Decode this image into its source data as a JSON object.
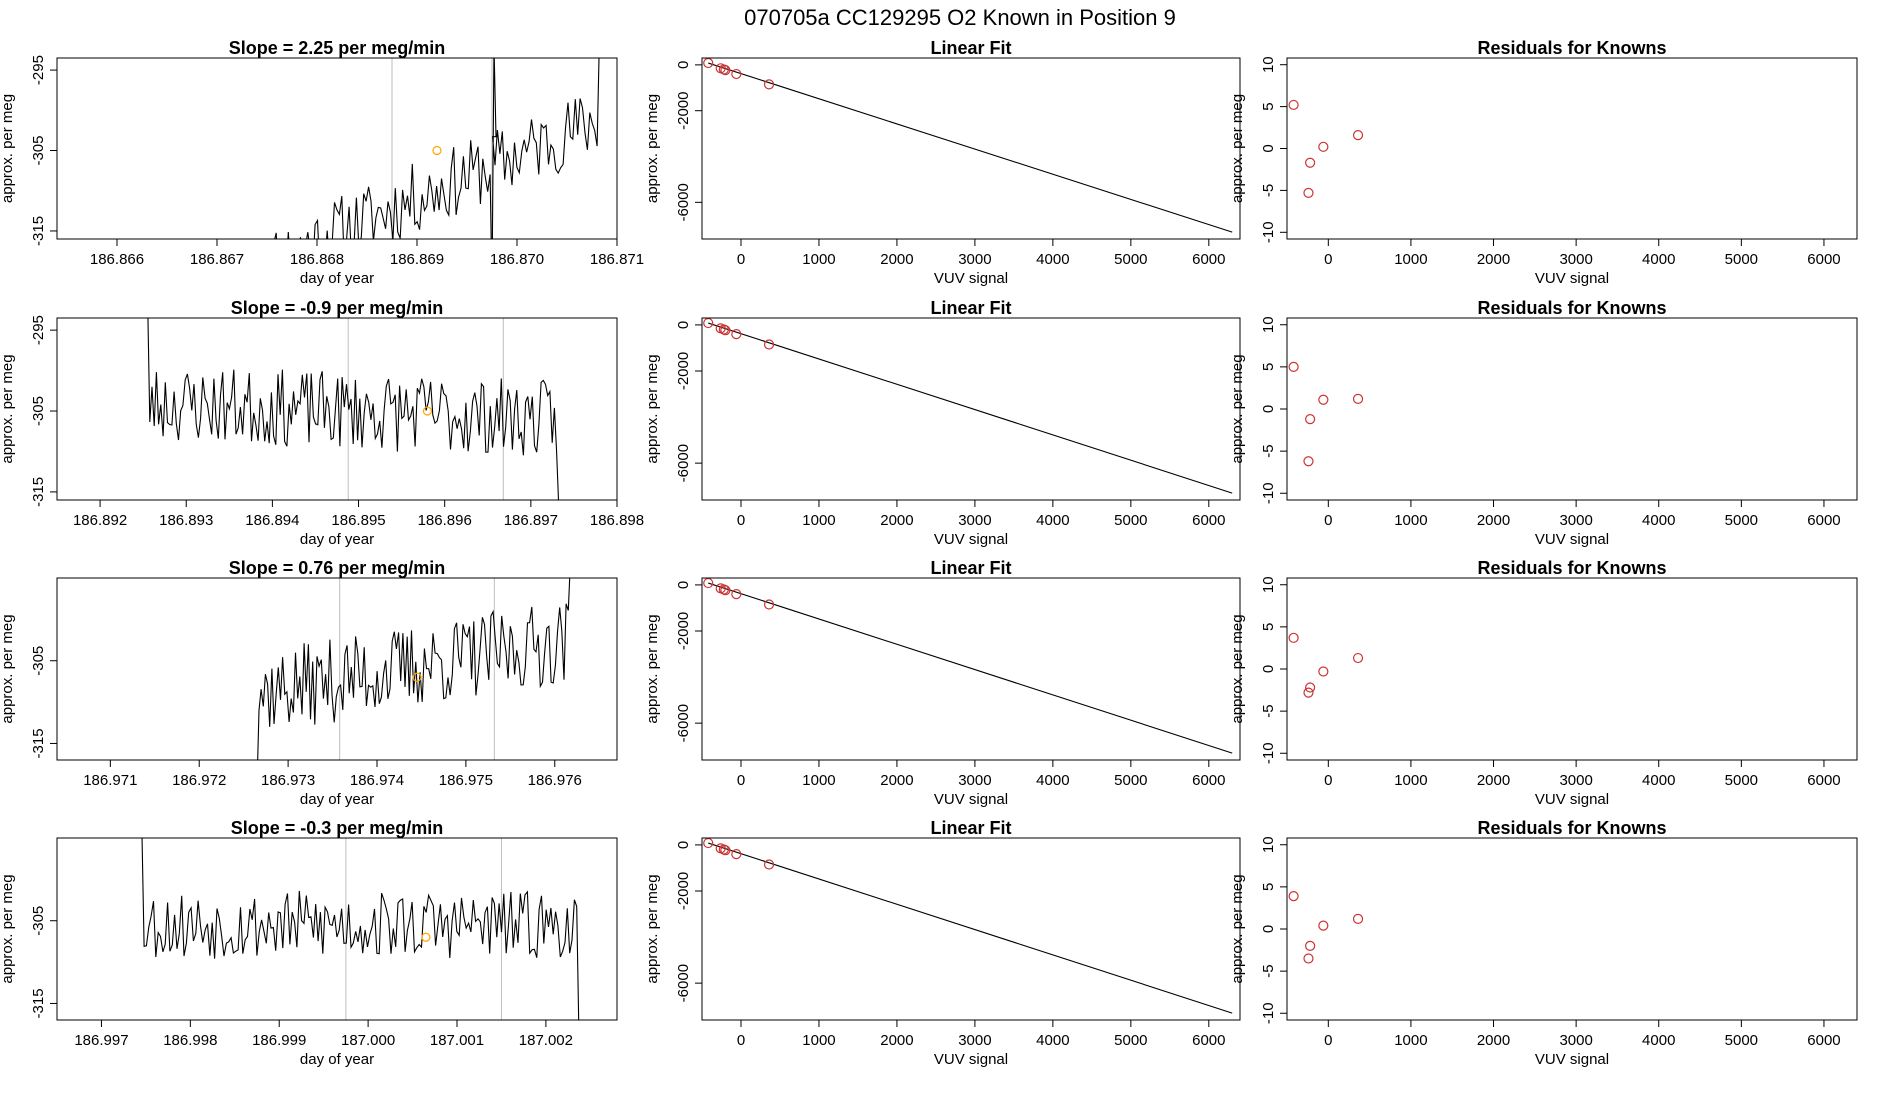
{
  "figure": {
    "title": "070705a      CC129295   O2 Known in Position  9",
    "colors": {
      "trace": "#000000",
      "marker": "#ffa500",
      "point": "#cd3333",
      "vline": "#bebebe",
      "axis": "#000000"
    }
  },
  "rows": [
    {
      "timeseries": {
        "title": "Slope =  2.25  per meg/min",
        "xlabel": "day of year",
        "ylabel": "approx. per meg",
        "xlim": [
          186.8654,
          186.871
        ],
        "ylim": [
          -316.0,
          -293.5
        ],
        "xticks": [
          186.866,
          186.867,
          186.868,
          186.869,
          186.87,
          186.871
        ],
        "xtick_labels": [
          "186.866",
          "186.867",
          "186.868",
          "186.869",
          "186.870",
          "186.871"
        ],
        "yticks": [
          -315,
          -305,
          -295
        ],
        "ytick_labels": [
          "-315",
          "-305",
          "-295"
        ],
        "vlines": [
          186.86875,
          186.86975
        ],
        "marker": {
          "x": 186.8692,
          "y": -305.0
        },
        "x_start": 186.86747,
        "x_end": 186.87085,
        "n": 140,
        "y_start": -319.0,
        "y_end": -301.0,
        "amp": 2.8,
        "seed": 11,
        "breaks": [
          [
            186.86975,
            -322,
            -292
          ]
        ],
        "tail_spike": -290,
        "chart_type": "line"
      },
      "fit": {
        "title": "Linear Fit",
        "xlabel": "VUV signal",
        "ylabel": "approx. per meg",
        "xlim": [
          -500,
          6400
        ],
        "ylim": [
          -7600,
          300
        ],
        "xticks": [
          0,
          1000,
          2000,
          3000,
          4000,
          5000,
          6000
        ],
        "xtick_labels": [
          "0",
          "1000",
          "2000",
          "3000",
          "4000",
          "5000",
          "6000"
        ],
        "yticks": [
          0,
          -2000,
          -6000
        ],
        "ytick_labels": [
          "0",
          "-2000",
          "-6000"
        ],
        "line": [
          [
            -420,
            80
          ],
          [
            6300,
            -7300
          ]
        ],
        "points": [
          [
            -420,
            80
          ],
          [
            -260,
            -150
          ],
          [
            -220,
            -200
          ],
          [
            -200,
            -230
          ],
          [
            -60,
            -400
          ],
          [
            360,
            -850
          ]
        ],
        "chart_type": "scatter"
      },
      "resid": {
        "title": "Residuals for Knowns",
        "xlabel": "VUV signal",
        "ylabel": "approx. per meg",
        "xlim": [
          -500,
          6400
        ],
        "ylim": [
          -10.8,
          10.8
        ],
        "xticks": [
          0,
          1000,
          2000,
          3000,
          4000,
          5000,
          6000
        ],
        "xtick_labels": [
          "0",
          "1000",
          "2000",
          "3000",
          "4000",
          "5000",
          "6000"
        ],
        "yticks": [
          -10,
          -5,
          0,
          5,
          10
        ],
        "ytick_labels": [
          "-10",
          "-5",
          "0",
          "5",
          "10"
        ],
        "points": [
          [
            -420,
            5.2
          ],
          [
            -240,
            -5.3
          ],
          [
            -220,
            -1.7
          ],
          [
            -60,
            0.2
          ],
          [
            360,
            1.6
          ]
        ],
        "chart_type": "scatter"
      }
    },
    {
      "timeseries": {
        "title": "Slope =  -0.9  per meg/min",
        "xlabel": "day of year",
        "ylabel": "approx. per meg",
        "xlim": [
          186.8915,
          186.898
        ],
        "ylim": [
          -316.0,
          -293.5
        ],
        "xticks": [
          186.892,
          186.893,
          186.894,
          186.895,
          186.896,
          186.897,
          186.898
        ],
        "xtick_labels": [
          "186.892",
          "186.893",
          "186.894",
          "186.895",
          "186.896",
          "186.897",
          "186.898"
        ],
        "yticks": [
          -315,
          -305,
          -295
        ],
        "ytick_labels": [
          "-315",
          "-305",
          "-295"
        ],
        "vlines": [
          186.89488,
          186.89668
        ],
        "marker": {
          "x": 186.8958,
          "y": -305.0
        },
        "x_start": 186.8925,
        "x_end": 186.89735,
        "n": 190,
        "y_start": -304.0,
        "y_end": -306.0,
        "amp": 3.0,
        "seed": 23,
        "breaks": [],
        "head_spike": -292,
        "tail_spike": -317,
        "chart_type": "line"
      },
      "fit": {
        "title": "Linear Fit",
        "xlabel": "VUV signal",
        "ylabel": "approx. per meg",
        "xlim": [
          -500,
          6400
        ],
        "ylim": [
          -7600,
          300
        ],
        "xticks": [
          0,
          1000,
          2000,
          3000,
          4000,
          5000,
          6000
        ],
        "xtick_labels": [
          "0",
          "1000",
          "2000",
          "3000",
          "4000",
          "5000",
          "6000"
        ],
        "yticks": [
          0,
          -2000,
          -6000
        ],
        "ytick_labels": [
          "0",
          "-2000",
          "-6000"
        ],
        "line": [
          [
            -420,
            80
          ],
          [
            6300,
            -7300
          ]
        ],
        "points": [
          [
            -420,
            80
          ],
          [
            -260,
            -150
          ],
          [
            -220,
            -200
          ],
          [
            -200,
            -230
          ],
          [
            -60,
            -400
          ],
          [
            360,
            -850
          ]
        ],
        "chart_type": "scatter"
      },
      "resid": {
        "title": "Residuals for Knowns",
        "xlabel": "VUV signal",
        "ylabel": "approx. per meg",
        "xlim": [
          -500,
          6400
        ],
        "ylim": [
          -10.8,
          10.8
        ],
        "xticks": [
          0,
          1000,
          2000,
          3000,
          4000,
          5000,
          6000
        ],
        "xtick_labels": [
          "0",
          "1000",
          "2000",
          "3000",
          "4000",
          "5000",
          "6000"
        ],
        "yticks": [
          -10,
          -5,
          0,
          5,
          10
        ],
        "ytick_labels": [
          "-10",
          "-5",
          "0",
          "5",
          "10"
        ],
        "points": [
          [
            -420,
            5.0
          ],
          [
            -240,
            -6.2
          ],
          [
            -220,
            -1.2
          ],
          [
            -60,
            1.1
          ],
          [
            360,
            1.2
          ]
        ],
        "chart_type": "scatter"
      }
    },
    {
      "timeseries": {
        "title": "Slope =  0.76  per meg/min",
        "xlabel": "day of year",
        "ylabel": "approx. per meg",
        "xlim": [
          186.9704,
          186.9767
        ],
        "ylim": [
          -317.0,
          -295.0
        ],
        "xticks": [
          186.971,
          186.972,
          186.973,
          186.974,
          186.975,
          186.976
        ],
        "xtick_labels": [
          "186.971",
          "186.972",
          "186.973",
          "186.974",
          "186.975",
          "186.976"
        ],
        "yticks": [
          -315,
          -305
        ],
        "ytick_labels": [
          "-315",
          "-305"
        ],
        "vlines": [
          186.97358,
          186.97532
        ],
        "marker": {
          "x": 186.97445,
          "y": -307.0
        },
        "x_start": 186.9726,
        "x_end": 186.9762,
        "n": 150,
        "y_start": -309.0,
        "y_end": -302.5,
        "amp": 3.2,
        "seed": 37,
        "breaks": [],
        "head_spike": -320,
        "tail_spike": -293,
        "chart_type": "line"
      },
      "fit": {
        "title": "Linear Fit",
        "xlabel": "VUV signal",
        "ylabel": "approx. per meg",
        "xlim": [
          -500,
          6400
        ],
        "ylim": [
          -7600,
          300
        ],
        "xticks": [
          0,
          1000,
          2000,
          3000,
          4000,
          5000,
          6000
        ],
        "xtick_labels": [
          "0",
          "1000",
          "2000",
          "3000",
          "4000",
          "5000",
          "6000"
        ],
        "yticks": [
          0,
          -2000,
          -6000
        ],
        "ytick_labels": [
          "0",
          "-2000",
          "-6000"
        ],
        "line": [
          [
            -420,
            80
          ],
          [
            6300,
            -7300
          ]
        ],
        "points": [
          [
            -420,
            80
          ],
          [
            -260,
            -150
          ],
          [
            -220,
            -200
          ],
          [
            -200,
            -230
          ],
          [
            -60,
            -400
          ],
          [
            360,
            -850
          ]
        ],
        "chart_type": "scatter"
      },
      "resid": {
        "title": "Residuals for Knowns",
        "xlabel": "VUV signal",
        "ylabel": "approx. per meg",
        "xlim": [
          -500,
          6400
        ],
        "ylim": [
          -10.8,
          10.8
        ],
        "xticks": [
          0,
          1000,
          2000,
          3000,
          4000,
          5000,
          6000
        ],
        "xtick_labels": [
          "0",
          "1000",
          "2000",
          "3000",
          "4000",
          "5000",
          "6000"
        ],
        "yticks": [
          -10,
          -5,
          0,
          5,
          10
        ],
        "ytick_labels": [
          "-10",
          "-5",
          "0",
          "5",
          "10"
        ],
        "points": [
          [
            -420,
            3.7
          ],
          [
            -240,
            -2.8
          ],
          [
            -220,
            -2.2
          ],
          [
            -60,
            -0.3
          ],
          [
            360,
            1.3
          ]
        ],
        "chart_type": "scatter"
      }
    },
    {
      "timeseries": {
        "title": "Slope =  -0.3  per meg/min",
        "xlabel": "day of year",
        "ylabel": "approx. per meg",
        "xlim": [
          186.9965,
          187.0028
        ],
        "ylim": [
          -317.0,
          -295.0
        ],
        "xticks": [
          186.997,
          186.998,
          186.999,
          187.0,
          187.001,
          187.002
        ],
        "xtick_labels": [
          "186.997",
          "186.998",
          "186.999",
          "187.000",
          "187.001",
          "187.002"
        ],
        "yticks": [
          -315,
          -305
        ],
        "ytick_labels": [
          "-315",
          "-305"
        ],
        "vlines": [
          186.99975,
          187.0015
        ],
        "marker": {
          "x": 187.00065,
          "y": -307.0
        },
        "x_start": 186.9974,
        "x_end": 187.0024,
        "n": 190,
        "y_start": -305.5,
        "y_end": -305.5,
        "amp": 2.6,
        "seed": 53,
        "breaks": [],
        "head_spike": -292,
        "tail_spike": -320,
        "chart_type": "line"
      },
      "fit": {
        "title": "Linear Fit",
        "xlabel": "VUV signal",
        "ylabel": "approx. per meg",
        "xlim": [
          -500,
          6400
        ],
        "ylim": [
          -7600,
          300
        ],
        "xticks": [
          0,
          1000,
          2000,
          3000,
          4000,
          5000,
          6000
        ],
        "xtick_labels": [
          "0",
          "1000",
          "2000",
          "3000",
          "4000",
          "5000",
          "6000"
        ],
        "yticks": [
          0,
          -2000,
          -6000
        ],
        "ytick_labels": [
          "0",
          "-2000",
          "-6000"
        ],
        "line": [
          [
            -420,
            80
          ],
          [
            6300,
            -7300
          ]
        ],
        "points": [
          [
            -420,
            80
          ],
          [
            -260,
            -150
          ],
          [
            -220,
            -200
          ],
          [
            -200,
            -230
          ],
          [
            -60,
            -400
          ],
          [
            360,
            -850
          ]
        ],
        "chart_type": "scatter"
      },
      "resid": {
        "title": "Residuals for Knowns",
        "xlabel": "VUV signal",
        "ylabel": "approx. per meg",
        "xlim": [
          -500,
          6400
        ],
        "ylim": [
          -10.8,
          10.8
        ],
        "xticks": [
          0,
          1000,
          2000,
          3000,
          4000,
          5000,
          6000
        ],
        "xtick_labels": [
          "0",
          "1000",
          "2000",
          "3000",
          "4000",
          "5000",
          "6000"
        ],
        "yticks": [
          -10,
          -5,
          0,
          5,
          10
        ],
        "ytick_labels": [
          "-10",
          "-5",
          "0",
          "5",
          "10"
        ],
        "points": [
          [
            -420,
            3.9
          ],
          [
            -240,
            -3.5
          ],
          [
            -220,
            -2.0
          ],
          [
            -60,
            0.4
          ],
          [
            360,
            1.2
          ]
        ],
        "chart_type": "scatter"
      }
    }
  ]
}
